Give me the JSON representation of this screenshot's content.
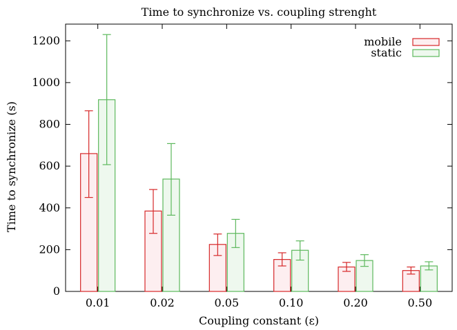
{
  "chart_data": {
    "type": "bar",
    "title": "Time to synchronize vs. coupling strenght",
    "xlabel": "Coupling constant (ε)",
    "ylabel": "Time to synchronize (s)",
    "categories": [
      "0.01",
      "0.02",
      "0.05",
      "0.10",
      "0.20",
      "0.50"
    ],
    "ylim": [
      0,
      1280
    ],
    "yticks": [
      0,
      200,
      400,
      600,
      800,
      1000,
      1200
    ],
    "grid": false,
    "legend_position": "top-right",
    "error_bars": true,
    "series": [
      {
        "name": "mobile",
        "color": "#d62728",
        "fill": "#fdeef0",
        "values": [
          660,
          385,
          225,
          153,
          117,
          100
        ],
        "err_low": [
          450,
          278,
          172,
          122,
          96,
          83
        ],
        "err_high": [
          865,
          488,
          275,
          185,
          139,
          117
        ]
      },
      {
        "name": "static",
        "color": "#5cb85c",
        "fill": "#eef8ee",
        "values": [
          918,
          538,
          278,
          197,
          148,
          122
        ],
        "err_low": [
          607,
          365,
          210,
          150,
          120,
          103
        ],
        "err_high": [
          1230,
          708,
          345,
          242,
          176,
          142
        ]
      }
    ]
  }
}
